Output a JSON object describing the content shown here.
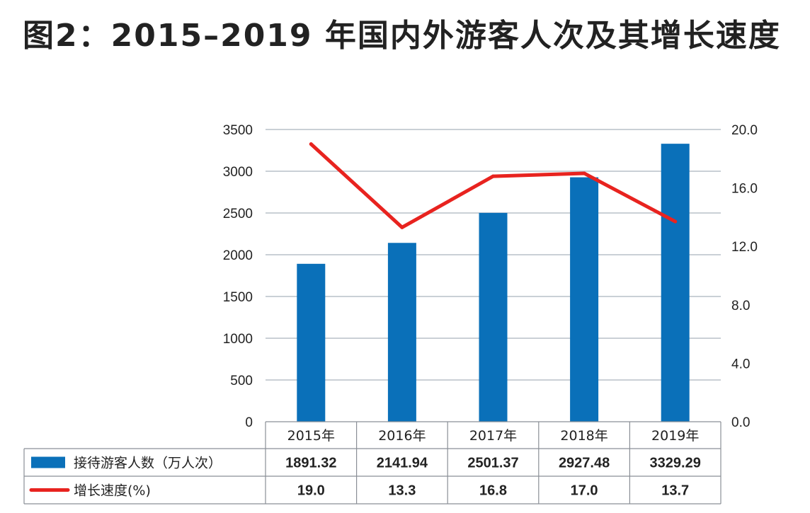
{
  "chart_data": {
    "type": "bar+line",
    "title": "图2：2015–2019 年国内外游客人次及其增长速度",
    "categories": [
      "2015年",
      "2016年",
      "2017年",
      "2018年",
      "2019年"
    ],
    "series": [
      {
        "name": "接待游客人数（万人次）",
        "type": "bar",
        "axis": "left",
        "values": [
          1891.32,
          2141.94,
          2501.37,
          2927.48,
          3329.29
        ],
        "value_labels": [
          "1891.32",
          "2141.94",
          "2501.37",
          "2927.48",
          "3329.29"
        ],
        "color": "#0a70b9"
      },
      {
        "name": "增长速度(%)",
        "type": "line",
        "axis": "right",
        "values": [
          19.0,
          13.3,
          16.8,
          17.0,
          13.7
        ],
        "value_labels": [
          "19.0",
          "13.3",
          "16.8",
          "17.0",
          "13.7"
        ],
        "color": "#e8231f"
      }
    ],
    "y_left": {
      "ylim": [
        0,
        3500
      ],
      "ticks": [
        "0",
        "500",
        "1000",
        "1500",
        "2000",
        "2500",
        "3000",
        "3500"
      ]
    },
    "y_right": {
      "ylim": [
        0,
        20
      ],
      "ticks": [
        "0.0",
        "4.0",
        "8.0",
        "12.0",
        "16.0",
        "20.0"
      ]
    },
    "grid": true,
    "legend": "data-table-below"
  }
}
